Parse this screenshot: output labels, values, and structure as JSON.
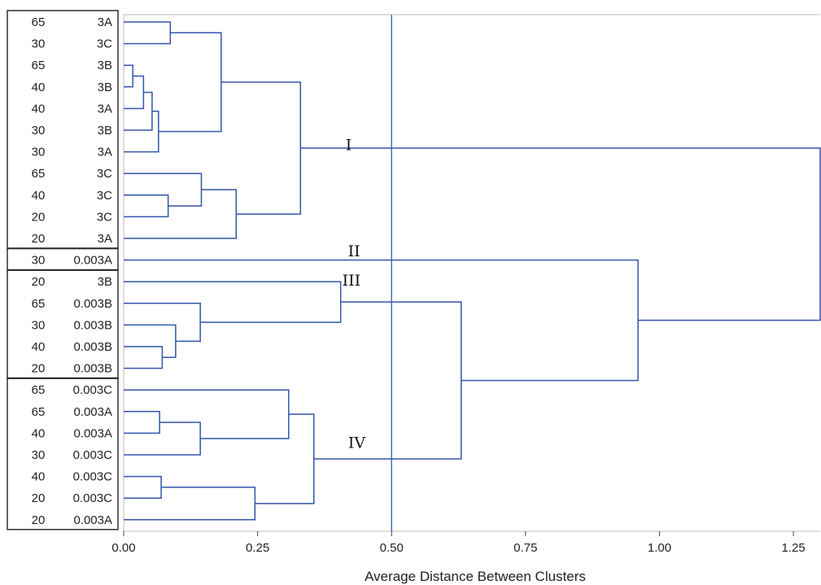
{
  "chart_data": {
    "type": "dendrogram",
    "xlabel": "Average Distance Between Clusters",
    "xlim": [
      0,
      1.3
    ],
    "xticks": [
      0.0,
      0.25,
      0.5,
      0.75,
      1.0,
      1.25
    ],
    "xtick_labels": [
      "0.00",
      "0.25",
      "0.50",
      "0.75",
      "1.00",
      "1.25"
    ],
    "cut_line": 0.5,
    "line_color": "#3355aa",
    "leaves": [
      {
        "a": "65",
        "b": "3A"
      },
      {
        "a": "30",
        "b": "3C"
      },
      {
        "a": "65",
        "b": "3B"
      },
      {
        "a": "40",
        "b": "3B"
      },
      {
        "a": "40",
        "b": "3A"
      },
      {
        "a": "30",
        "b": "3B"
      },
      {
        "a": "30",
        "b": "3A"
      },
      {
        "a": "65",
        "b": "3C"
      },
      {
        "a": "40",
        "b": "3C"
      },
      {
        "a": "20",
        "b": "3C"
      },
      {
        "a": "20",
        "b": "3A"
      },
      {
        "a": "30",
        "b": "0.003A"
      },
      {
        "a": "20",
        "b": "3B"
      },
      {
        "a": "65",
        "b": "0.003B"
      },
      {
        "a": "30",
        "b": "0.003B"
      },
      {
        "a": "40",
        "b": "0.003B"
      },
      {
        "a": "20",
        "b": "0.003B"
      },
      {
        "a": "65",
        "b": "0.003C"
      },
      {
        "a": "65",
        "b": "0.003A"
      },
      {
        "a": "40",
        "b": "0.003A"
      },
      {
        "a": "30",
        "b": "0.003C"
      },
      {
        "a": "40",
        "b": "0.003C"
      },
      {
        "a": "20",
        "b": "0.003C"
      },
      {
        "a": "20",
        "b": "0.003A"
      }
    ],
    "merges": [
      {
        "id": "A",
        "left": 2,
        "right": 3,
        "height": 0.017
      },
      {
        "id": "B",
        "left": "A",
        "right": 4,
        "height": 0.037
      },
      {
        "id": "C",
        "left": "B",
        "right": 5,
        "height": 0.053
      },
      {
        "id": "D",
        "left": "C",
        "right": 6,
        "height": 0.065
      },
      {
        "id": "E",
        "left": 0,
        "right": 1,
        "height": 0.087
      },
      {
        "id": "F",
        "left": "E",
        "right": "D",
        "height": 0.182
      },
      {
        "id": "G",
        "left": 8,
        "right": 9,
        "height": 0.083
      },
      {
        "id": "H",
        "left": 7,
        "right": "G",
        "height": 0.145
      },
      {
        "id": "J",
        "left": "H",
        "right": 10,
        "height": 0.21
      },
      {
        "id": "K",
        "left": "F",
        "right": "J",
        "height": 0.33
      },
      {
        "id": "L",
        "left": 15,
        "right": 16,
        "height": 0.072
      },
      {
        "id": "M",
        "left": 14,
        "right": "L",
        "height": 0.097
      },
      {
        "id": "N",
        "left": 13,
        "right": "M",
        "height": 0.143
      },
      {
        "id": "O",
        "left": 12,
        "right": "N",
        "height": 0.405
      },
      {
        "id": "P",
        "left": 18,
        "right": 19,
        "height": 0.067
      },
      {
        "id": "Q",
        "left": "P",
        "right": 20,
        "height": 0.143
      },
      {
        "id": "R",
        "left": 17,
        "right": "Q",
        "height": 0.308
      },
      {
        "id": "S",
        "left": 21,
        "right": 22,
        "height": 0.07
      },
      {
        "id": "T",
        "left": "S",
        "right": 23,
        "height": 0.245
      },
      {
        "id": "U",
        "left": "R",
        "right": "T",
        "height": 0.355
      },
      {
        "id": "V",
        "left": "O",
        "right": "U",
        "height": 0.63
      },
      {
        "id": "W",
        "left": 11,
        "right": "V",
        "height": 0.96
      },
      {
        "id": "X",
        "left": "K",
        "right": "W",
        "height": 1.32
      }
    ],
    "groups": [
      {
        "from": 0,
        "to": 10
      },
      {
        "from": 11,
        "to": 11
      },
      {
        "from": 12,
        "to": 16
      },
      {
        "from": 17,
        "to": 23
      }
    ],
    "cluster_labels": [
      {
        "text": "I",
        "x": 0.42,
        "leaf_pos": 5.7
      },
      {
        "text": "II",
        "x": 0.43,
        "leaf_pos": 10.6
      },
      {
        "text": "III",
        "x": 0.425,
        "leaf_pos": 11.95
      },
      {
        "text": "IV",
        "x": 0.435,
        "leaf_pos": 19.45
      }
    ]
  }
}
